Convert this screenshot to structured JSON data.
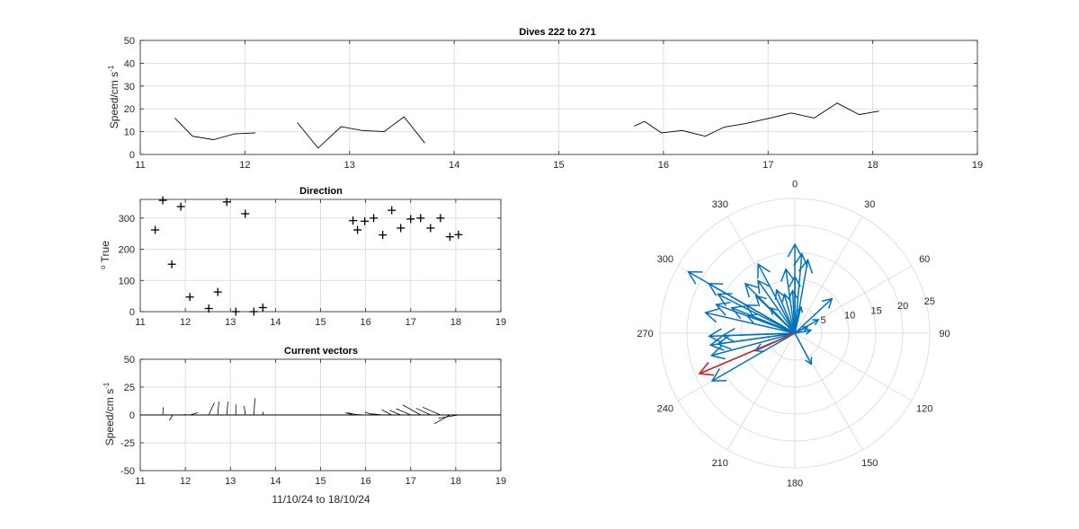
{
  "chart_data": [
    {
      "id": "speed",
      "type": "line",
      "title": "Dives 222 to 271",
      "ylabel": "Speed/cm s^-1",
      "xlim": [
        11,
        19
      ],
      "ylim": [
        0,
        50
      ],
      "xticks": [
        11,
        12,
        13,
        14,
        15,
        16,
        17,
        18,
        19
      ],
      "yticks": [
        0,
        10,
        20,
        30,
        40,
        50
      ],
      "grid": true,
      "series": [
        {
          "segments": [
            [
              [
                11.33,
                16
              ],
              [
                11.5,
                8
              ],
              [
                11.7,
                6.5
              ],
              [
                11.9,
                9
              ],
              [
                12.1,
                9.5
              ]
            ],
            [
              [
                12.5,
                14
              ],
              [
                12.7,
                2.8
              ],
              [
                12.92,
                12.2
              ],
              [
                13.12,
                10.5
              ],
              [
                13.33,
                10
              ],
              [
                13.52,
                16.5
              ],
              [
                13.72,
                5
              ]
            ],
            [
              [
                15.72,
                12.5
              ],
              [
                15.82,
                14.5
              ],
              [
                15.98,
                9.5
              ],
              [
                16.18,
                10.5
              ],
              [
                16.4,
                8
              ],
              [
                16.58,
                12
              ],
              [
                16.78,
                13.5
              ],
              [
                17.02,
                16
              ],
              [
                17.22,
                18.2
              ],
              [
                17.44,
                16
              ],
              [
                17.66,
                22.5
              ],
              [
                17.87,
                17.5
              ],
              [
                18.06,
                19
              ]
            ]
          ]
        }
      ]
    },
    {
      "id": "direction",
      "type": "scatter",
      "title": "Direction",
      "ylabel": "o True",
      "xlim": [
        11,
        19
      ],
      "ylim": [
        0,
        360
      ],
      "xticks": [
        11,
        12,
        13,
        14,
        15,
        16,
        17,
        18,
        19
      ],
      "yticks": [
        0,
        100,
        200,
        300
      ],
      "grid": true,
      "points": [
        [
          11.33,
          262
        ],
        [
          11.5,
          357
        ],
        [
          11.7,
          152
        ],
        [
          11.9,
          337
        ],
        [
          12.1,
          47
        ],
        [
          12.52,
          10
        ],
        [
          12.72,
          63
        ],
        [
          12.92,
          352
        ],
        [
          13.12,
          0
        ],
        [
          13.33,
          314
        ],
        [
          13.52,
          0
        ],
        [
          13.72,
          13
        ],
        [
          15.72,
          292
        ],
        [
          15.82,
          262
        ],
        [
          15.98,
          290
        ],
        [
          16.18,
          300
        ],
        [
          16.38,
          246
        ],
        [
          16.58,
          325
        ],
        [
          16.78,
          268
        ],
        [
          17.0,
          297
        ],
        [
          17.22,
          300
        ],
        [
          17.44,
          268
        ],
        [
          17.66,
          300
        ],
        [
          17.87,
          240
        ],
        [
          18.06,
          247
        ]
      ]
    },
    {
      "id": "vectors",
      "type": "line",
      "title": "Current vectors",
      "ylabel": "Speed/cm s^-1",
      "xlabel": "11/10/24 to 18/10/24",
      "xlim": [
        11,
        19
      ],
      "ylim": [
        -50,
        50
      ],
      "xticks": [
        11,
        12,
        13,
        14,
        15,
        16,
        17,
        18,
        19
      ],
      "yticks": [
        -50,
        -25,
        0,
        25,
        50
      ],
      "grid": true,
      "sticks": [
        [
          11.5,
          0.3,
          7
        ],
        [
          11.72,
          -3,
          -5
        ],
        [
          11.9,
          4.5,
          0.3
        ],
        [
          12.1,
          7,
          2
        ],
        [
          12.52,
          5,
          11
        ],
        [
          12.72,
          1,
          12
        ],
        [
          12.92,
          1,
          12
        ],
        [
          13.12,
          0,
          9.5
        ],
        [
          13.33,
          -1,
          8
        ],
        [
          13.52,
          1,
          15
        ],
        [
          13.72,
          0.5,
          3
        ],
        [
          15.72,
          -7,
          2
        ],
        [
          15.82,
          -9,
          2
        ],
        [
          15.98,
          -10,
          0.5
        ],
        [
          16.18,
          -8,
          2.5
        ],
        [
          16.38,
          -10,
          1
        ],
        [
          16.58,
          -9,
          4.5
        ],
        [
          16.78,
          -10,
          4
        ],
        [
          17.0,
          -13,
          5.5
        ],
        [
          17.22,
          -16,
          9
        ],
        [
          17.44,
          -13,
          6
        ],
        [
          17.66,
          -16,
          7
        ],
        [
          17.87,
          -14,
          -8
        ],
        [
          18.06,
          -18,
          -3
        ]
      ]
    },
    {
      "id": "polar",
      "type": "scatter",
      "title": "",
      "theta_labels": [
        "0",
        "30",
        "60",
        "90",
        "120",
        "150",
        "180",
        "210",
        "240",
        "270",
        "300",
        "330"
      ],
      "r_ticks": [
        5,
        10,
        15,
        20,
        25
      ],
      "r_max": 25,
      "arrows_blue": [
        [
          262,
          15.8
        ],
        [
          357,
          7.9
        ],
        [
          152,
          6.5
        ],
        [
          337,
          8.7
        ],
        [
          47,
          9.4
        ],
        [
          10,
          13.8
        ],
        [
          63,
          2.6
        ],
        [
          352,
          12.0
        ],
        [
          0,
          10.5
        ],
        [
          314,
          10.0
        ],
        [
          0,
          16.5
        ],
        [
          13,
          5.0
        ],
        [
          292,
          12.6
        ],
        [
          262,
          14.4
        ],
        [
          290,
          9.4
        ],
        [
          300,
          10.4
        ],
        [
          246,
          8.0
        ],
        [
          325,
          11.9
        ],
        [
          268,
          13.4
        ],
        [
          297,
          16.0
        ],
        [
          300,
          18.4
        ],
        [
          268,
          15.9
        ],
        [
          300,
          22.8
        ],
        [
          240,
          17.7
        ],
        [
          247,
          19.2
        ],
        [
          332,
          14.5
        ],
        [
          5,
          14.8
        ],
        [
          345,
          7.5
        ],
        [
          290,
          15.5
        ],
        [
          315,
          13.0
        ],
        [
          60,
          5.0
        ],
        [
          80,
          3.0
        ],
        [
          283,
          17.0
        ],
        [
          255,
          16.0
        ],
        [
          316,
          6.5
        ]
      ],
      "arrow_red": [
        247,
        19.2
      ],
      "colors": {
        "blue": "#0072bd",
        "red": "#d62728"
      }
    }
  ]
}
